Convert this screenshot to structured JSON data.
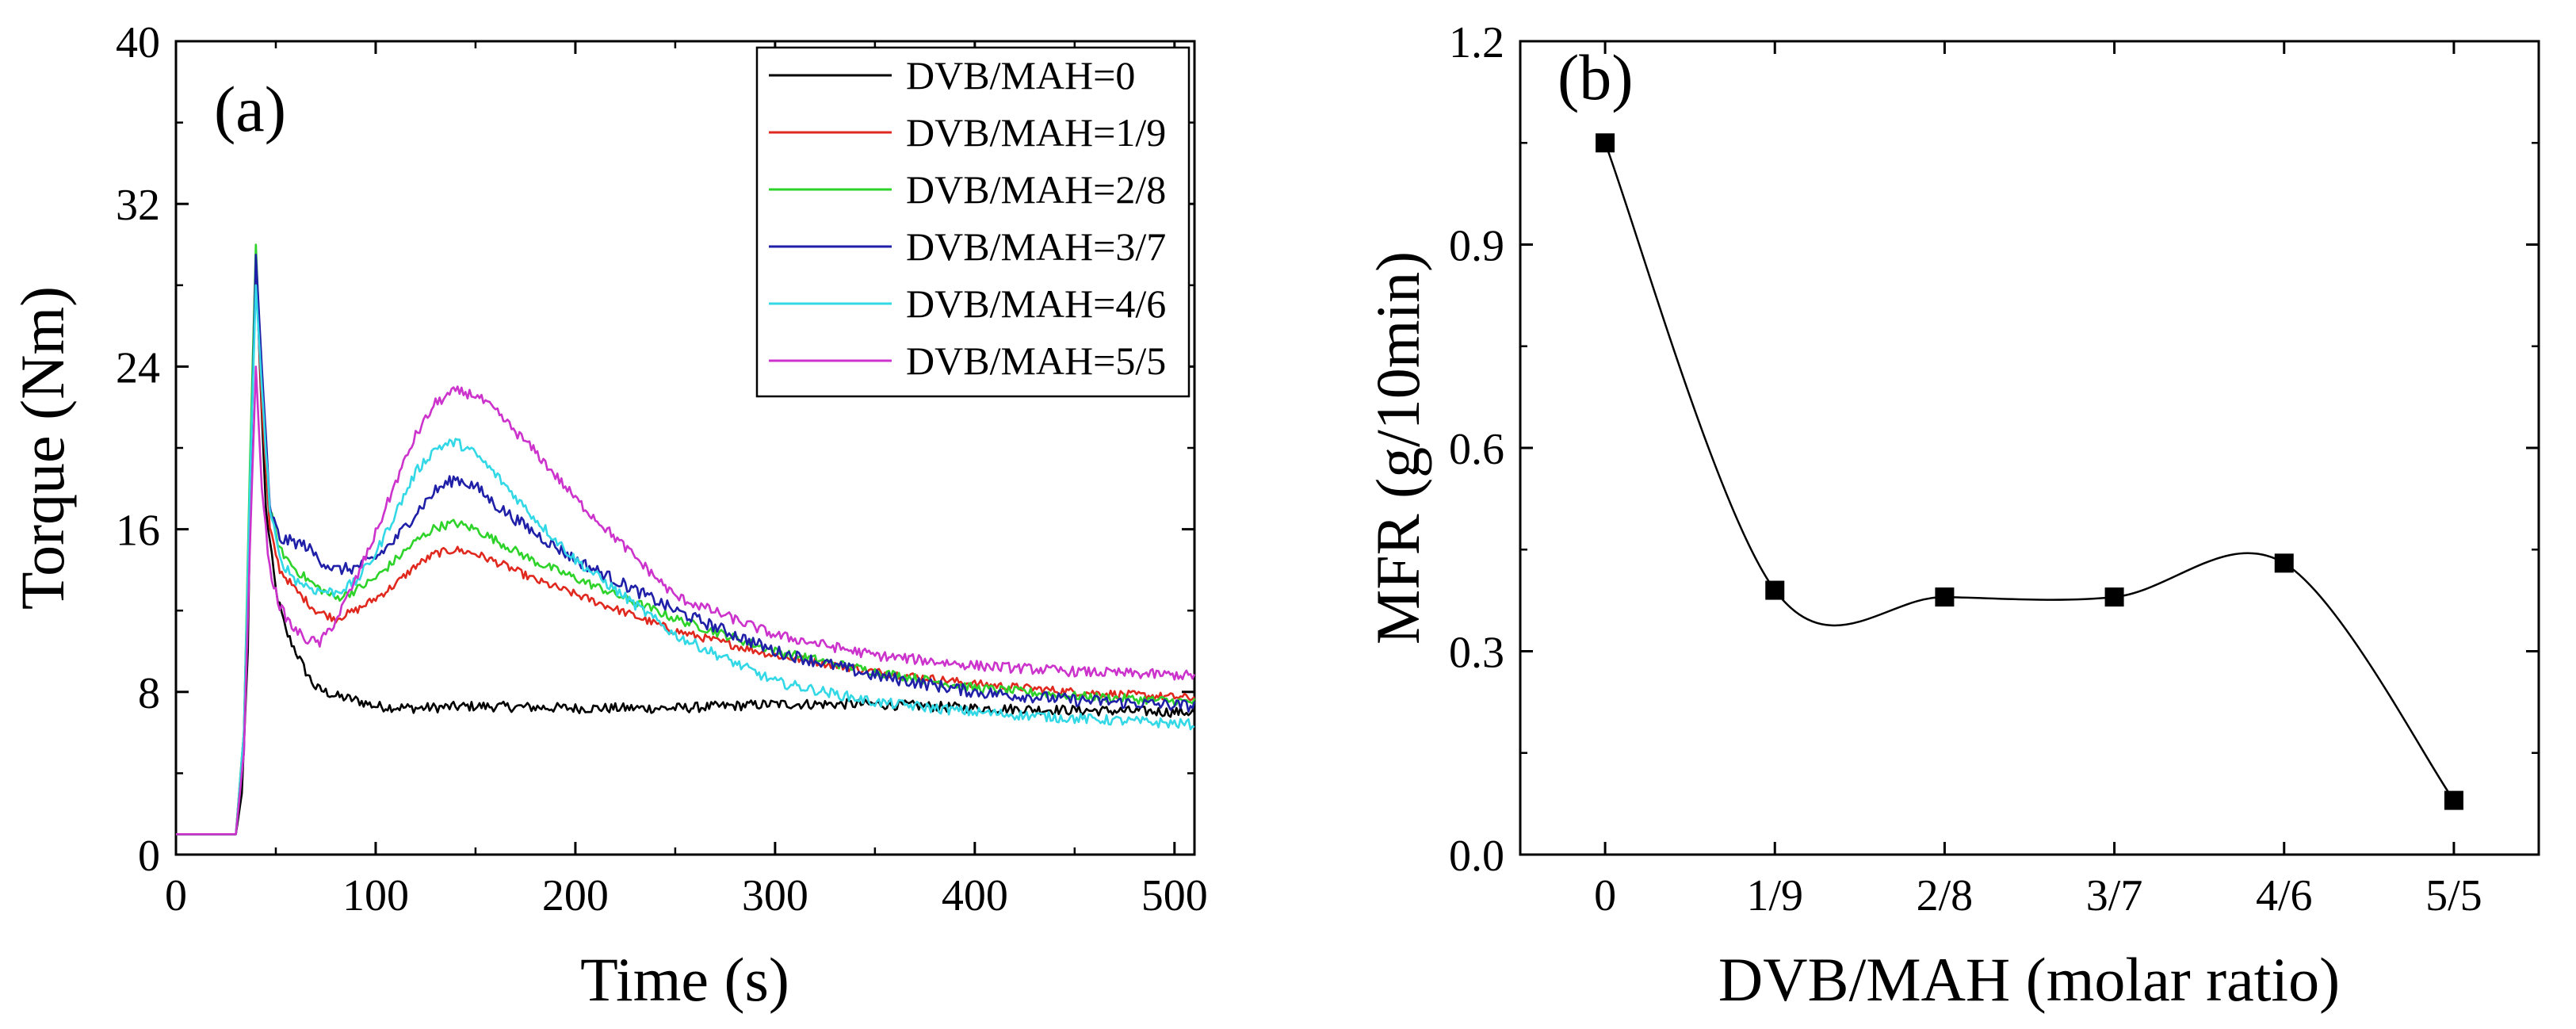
{
  "chart_data": [
    {
      "type": "line",
      "panel_label": "(a)",
      "xlabel": "Time (s)",
      "ylabel": "Torque (Nm)",
      "xlim": [
        0,
        510
      ],
      "ylim": [
        0,
        40
      ],
      "xticks": [
        0,
        100,
        200,
        300,
        400,
        500
      ],
      "yticks": [
        0,
        8,
        16,
        24,
        32,
        40
      ],
      "legend_position": "top-right",
      "series": [
        {
          "name": "DVB/MAH=0",
          "color": "#000000",
          "x": [
            0,
            30,
            33,
            36,
            38,
            40,
            42,
            45,
            50,
            55,
            60,
            65,
            70,
            80,
            90,
            100,
            120,
            150,
            200,
            250,
            300,
            350,
            400,
            450,
            510
          ],
          "y": [
            1,
            1,
            3,
            10,
            22,
            29.5,
            24,
            17,
            13,
            11,
            10,
            9,
            8.2,
            7.8,
            7.6,
            7.3,
            7.2,
            7.3,
            7.2,
            7.2,
            7.4,
            7.4,
            7.2,
            7.1,
            7.0
          ],
          "noise": 0.25
        },
        {
          "name": "DVB/MAH=1/9",
          "color": "#e0281e",
          "x": [
            0,
            30,
            34,
            37,
            40,
            43,
            47,
            52,
            60,
            70,
            80,
            90,
            100,
            110,
            120,
            130,
            140,
            150,
            165,
            180,
            200,
            250,
            300,
            350,
            400,
            450,
            510
          ],
          "y": [
            1,
            1,
            6,
            18,
            29,
            22,
            16,
            14,
            13,
            12,
            11.6,
            12,
            12.6,
            13.3,
            14.2,
            14.8,
            15.0,
            14.8,
            14.2,
            13.5,
            12.8,
            11.0,
            9.8,
            9.0,
            8.4,
            8.0,
            7.7
          ],
          "noise": 0.2
        },
        {
          "name": "DVB/MAH=2/8",
          "color": "#2ed32a",
          "x": [
            0,
            30,
            34,
            37,
            40,
            43,
            47,
            52,
            60,
            70,
            80,
            90,
            100,
            110,
            120,
            130,
            140,
            150,
            165,
            180,
            200,
            250,
            300,
            350,
            400,
            450,
            510
          ],
          "y": [
            1,
            1,
            6,
            19,
            30,
            23,
            17,
            15,
            14,
            13.2,
            12.6,
            13,
            13.6,
            14.5,
            15.4,
            16.1,
            16.3,
            16,
            15.2,
            14.4,
            13.6,
            11.6,
            10,
            9.0,
            8.2,
            7.8,
            7.5
          ],
          "noise": 0.22
        },
        {
          "name": "DVB/MAH=3/7",
          "color": "#1f1fa8",
          "x": [
            0,
            30,
            34,
            37,
            40,
            43,
            47,
            52,
            58,
            65,
            72,
            80,
            90,
            100,
            110,
            120,
            130,
            140,
            150,
            160,
            180,
            200,
            250,
            300,
            350,
            400,
            450,
            510
          ],
          "y": [
            1,
            1,
            5,
            17,
            29.5,
            24,
            17,
            15.5,
            15.4,
            15.2,
            14.5,
            14,
            14.1,
            14.6,
            15.5,
            16.8,
            17.9,
            18.5,
            18.1,
            17.2,
            15.8,
            14.5,
            12.0,
            10.0,
            8.8,
            8.0,
            7.6,
            7.3
          ],
          "noise": 0.3
        },
        {
          "name": "DVB/MAH=4/6",
          "color": "#33d8e6",
          "x": [
            0,
            30,
            34,
            37,
            40,
            43,
            47,
            52,
            60,
            70,
            80,
            90,
            100,
            110,
            120,
            130,
            140,
            150,
            160,
            180,
            200,
            250,
            300,
            350,
            400,
            450,
            510
          ],
          "y": [
            1,
            1,
            6,
            18,
            28,
            23,
            17,
            14.5,
            13.5,
            13,
            12.9,
            13.4,
            14.8,
            16.8,
            18.8,
            20,
            20.3,
            19.7,
            18.7,
            16.5,
            14.5,
            10.8,
            8.5,
            7.5,
            7.0,
            6.7,
            6.4
          ],
          "noise": 0.25
        },
        {
          "name": "DVB/MAH=5/5",
          "color": "#cc33cc",
          "x": [
            0,
            30,
            34,
            37,
            40,
            43,
            47,
            52,
            58,
            65,
            72,
            80,
            90,
            100,
            110,
            120,
            130,
            140,
            150,
            160,
            180,
            200,
            250,
            300,
            350,
            400,
            450,
            510
          ],
          "y": [
            1,
            1,
            5,
            15,
            24,
            18,
            14,
            12.2,
            11.2,
            10.6,
            10.4,
            11.5,
            13.5,
            15.8,
            18.3,
            20.6,
            22.2,
            22.8,
            22.6,
            21.8,
            19.8,
            17.5,
            12.7,
            10.8,
            9.8,
            9.3,
            9.0,
            8.8
          ],
          "noise": 0.25
        }
      ]
    },
    {
      "type": "scatter",
      "panel_label": "(b)",
      "xlabel": "DVB/MAH (molar ratio)",
      "ylabel": "MFR (g/10min)",
      "categories": [
        "0",
        "1/9",
        "2/8",
        "3/7",
        "4/6",
        "5/5"
      ],
      "values": [
        1.05,
        0.39,
        0.38,
        0.38,
        0.43,
        0.08
      ],
      "ylim": [
        0.0,
        1.2
      ],
      "yticks": [
        "0.0",
        "0.3",
        "0.6",
        "0.9",
        "1.2"
      ],
      "connector": "smooth spline",
      "marker": "square",
      "color": "#000000"
    }
  ]
}
